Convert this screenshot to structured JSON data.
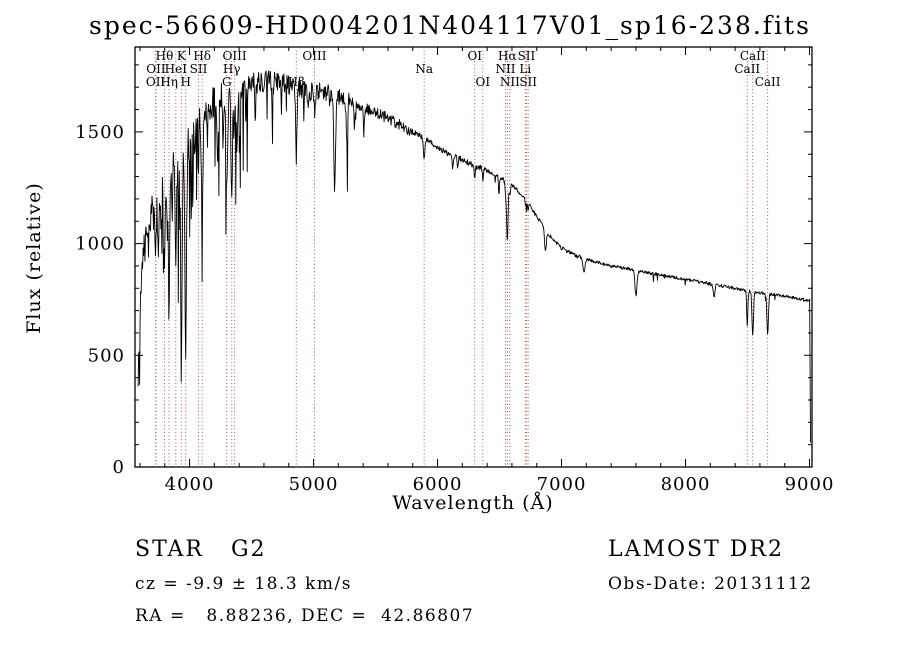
{
  "title": "spec-56609-HD004201N404117V01_sp16-238.fits",
  "footer": {
    "object_class": "STAR   G2",
    "survey": "LAMOST DR2",
    "cz": "cz = -9.9 ± 18.3 km/s",
    "obs_date": "Obs-Date: 20131112",
    "radec": "RA =   8.88236, DEC =  42.86807"
  },
  "chart_data": {
    "type": "line",
    "title": "spec-56609-HD004201N404117V01_sp16-238.fits",
    "xlabel": "Wavelength (Å)",
    "ylabel": "Flux (relative)",
    "xlim": [
      3560,
      9020
    ],
    "ylim": [
      0,
      1880
    ],
    "xticks": [
      4000,
      5000,
      6000,
      7000,
      8000,
      9000
    ],
    "yticks": [
      0,
      500,
      1000,
      1500
    ],
    "grid": false,
    "legend": "none",
    "line_color": "#000000",
    "marker_color": "#a85a5a",
    "sample_step": 4,
    "spectrum_range": [
      3585,
      9002
    ],
    "spectral_lines": [
      {
        "label": "OII",
        "wl": 3729,
        "row": 2
      },
      {
        "label": "OII",
        "wl": 3726,
        "row": 3
      },
      {
        "label": "Hθ",
        "wl": 3798,
        "row": 1
      },
      {
        "label": "Hη",
        "wl": 3835,
        "row": 3
      },
      {
        "label": "HeI",
        "wl": 3889,
        "row": 2
      },
      {
        "label": "K",
        "wl": 3934,
        "row": 1
      },
      {
        "label": "H",
        "wl": 3969,
        "row": 3
      },
      {
        "label": "SII",
        "wl": 4072,
        "row": 2
      },
      {
        "label": "Hδ",
        "wl": 4102,
        "row": 1
      },
      {
        "label": "G",
        "wl": 4300,
        "row": 3
      },
      {
        "label": "Hγ",
        "wl": 4340,
        "row": 2
      },
      {
        "label": "OIII",
        "wl": 4363,
        "row": 1
      },
      {
        "label": "Hβ",
        "wl": 4861,
        "row": 3
      },
      {
        "label": "OIII",
        "wl": 5007,
        "row": 1
      },
      {
        "label": "Na",
        "wl": 5892,
        "row": 2
      },
      {
        "label": "OI",
        "wl": 6300,
        "row": 1
      },
      {
        "label": "OI",
        "wl": 6365,
        "row": 3
      },
      {
        "label": "NII",
        "wl": 6548,
        "row": 2
      },
      {
        "label": "Hα",
        "wl": 6563,
        "row": 1
      },
      {
        "label": "NII",
        "wl": 6583,
        "row": 3
      },
      {
        "label": "Li",
        "wl": 6708,
        "row": 2
      },
      {
        "label": "SII",
        "wl": 6717,
        "row": 1
      },
      {
        "label": "SII",
        "wl": 6731,
        "row": 3
      },
      {
        "label": "CaII",
        "wl": 8498,
        "row": 2
      },
      {
        "label": "CaII",
        "wl": 8542,
        "row": 1
      },
      {
        "label": "CaII",
        "wl": 8662,
        "row": 3
      }
    ],
    "continuum": [
      [
        3585,
        420
      ],
      [
        3600,
        700
      ],
      [
        3620,
        950
      ],
      [
        3650,
        1060
      ],
      [
        3700,
        1150
      ],
      [
        3750,
        1230
      ],
      [
        3800,
        1300
      ],
      [
        3850,
        1360
      ],
      [
        3900,
        1400
      ],
      [
        3950,
        1430
      ],
      [
        4000,
        1490
      ],
      [
        4050,
        1550
      ],
      [
        4100,
        1590
      ],
      [
        4150,
        1615
      ],
      [
        4200,
        1640
      ],
      [
        4300,
        1665
      ],
      [
        4400,
        1695
      ],
      [
        4500,
        1715
      ],
      [
        4600,
        1725
      ],
      [
        4700,
        1725
      ],
      [
        4800,
        1715
      ],
      [
        4900,
        1700
      ],
      [
        5000,
        1680
      ],
      [
        5100,
        1670
      ],
      [
        5200,
        1650
      ],
      [
        5300,
        1630
      ],
      [
        5400,
        1610
      ],
      [
        5500,
        1590
      ],
      [
        5600,
        1560
      ],
      [
        5700,
        1530
      ],
      [
        5800,
        1500
      ],
      [
        5900,
        1470
      ],
      [
        6000,
        1430
      ],
      [
        6100,
        1400
      ],
      [
        6200,
        1375
      ],
      [
        6300,
        1350
      ],
      [
        6400,
        1325
      ],
      [
        6500,
        1300
      ],
      [
        6600,
        1260
      ],
      [
        6700,
        1210
      ],
      [
        6800,
        1120
      ],
      [
        6900,
        1040
      ],
      [
        7000,
        980
      ],
      [
        7100,
        950
      ],
      [
        7200,
        930
      ],
      [
        7300,
        915
      ],
      [
        7400,
        900
      ],
      [
        7500,
        890
      ],
      [
        7600,
        880
      ],
      [
        7700,
        870
      ],
      [
        7800,
        860
      ],
      [
        7900,
        850
      ],
      [
        8000,
        840
      ],
      [
        8200,
        820
      ],
      [
        8400,
        800
      ],
      [
        8600,
        780
      ],
      [
        8800,
        765
      ],
      [
        8900,
        755
      ],
      [
        9000,
        745
      ]
    ],
    "absorption_lines": [
      [
        3726,
        260,
        5
      ],
      [
        3750,
        300,
        4
      ],
      [
        3770,
        260,
        4
      ],
      [
        3798,
        430,
        5
      ],
      [
        3820,
        220,
        4
      ],
      [
        3835,
        700,
        5
      ],
      [
        3860,
        260,
        4
      ],
      [
        3889,
        550,
        5
      ],
      [
        3910,
        220,
        4
      ],
      [
        3934,
        1000,
        6
      ],
      [
        3969,
        950,
        6
      ],
      [
        4000,
        200,
        4
      ],
      [
        4026,
        170,
        4
      ],
      [
        4045,
        180,
        4
      ],
      [
        4072,
        220,
        4
      ],
      [
        4102,
        520,
        6
      ],
      [
        4144,
        200,
        4
      ],
      [
        4226,
        280,
        5
      ],
      [
        4271,
        220,
        5
      ],
      [
        4300,
        360,
        8
      ],
      [
        4340,
        470,
        6
      ],
      [
        4363,
        140,
        4
      ],
      [
        4383,
        260,
        5
      ],
      [
        4405,
        210,
        4
      ],
      [
        4455,
        140,
        4
      ],
      [
        4531,
        140,
        4
      ],
      [
        4668,
        140,
        4
      ],
      [
        4861,
        320,
        6
      ],
      [
        4920,
        110,
        4
      ],
      [
        4957,
        110,
        4
      ],
      [
        5007,
        90,
        4
      ],
      [
        5170,
        420,
        7
      ],
      [
        5270,
        190,
        5
      ],
      [
        5330,
        130,
        4
      ],
      [
        5405,
        130,
        4
      ],
      [
        5892,
        95,
        6
      ],
      [
        6122,
        60,
        4
      ],
      [
        6162,
        60,
        4
      ],
      [
        6300,
        55,
        4
      ],
      [
        6365,
        45,
        4
      ],
      [
        6495,
        80,
        4
      ],
      [
        6548,
        60,
        4
      ],
      [
        6563,
        270,
        6
      ],
      [
        6583,
        55,
        4
      ],
      [
        6708,
        40,
        3
      ],
      [
        6717,
        45,
        3
      ],
      [
        6731,
        45,
        3
      ],
      [
        6870,
        95,
        7
      ],
      [
        7180,
        60,
        8
      ],
      [
        7600,
        115,
        8
      ],
      [
        8230,
        60,
        6
      ],
      [
        8498,
        160,
        5
      ],
      [
        8542,
        200,
        6
      ],
      [
        8662,
        180,
        6
      ]
    ],
    "noise_profile": [
      [
        4300,
        70
      ],
      [
        5300,
        48
      ],
      [
        5800,
        26
      ],
      [
        6400,
        13
      ],
      [
        7200,
        9
      ],
      [
        9100,
        7
      ]
    ],
    "spike_profile": [
      [
        4500,
        0.1,
        450
      ],
      [
        5400,
        0.05,
        220
      ],
      [
        9100,
        0.02,
        35
      ]
    ]
  }
}
